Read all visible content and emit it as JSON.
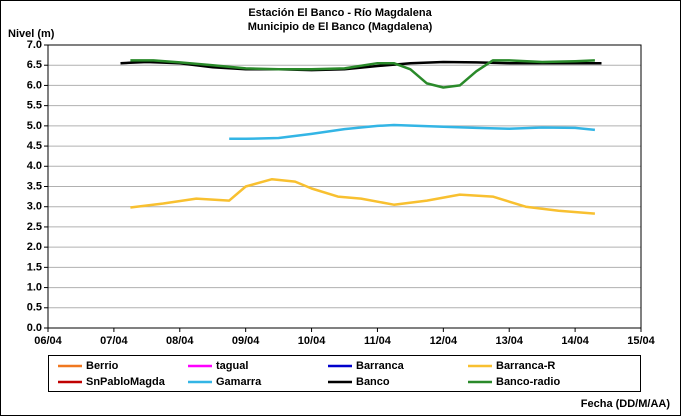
{
  "chart_data": {
    "type": "line",
    "title": "Estación El Banco - Río Magdalena",
    "subtitle": "Municipio de El Banco (Magdalena)",
    "y_label": "Nivel (m)",
    "x_label": "Fecha (DD/M/AA)",
    "xlim": [
      6,
      15
    ],
    "xticks": [
      {
        "value": 6,
        "label": "06/04"
      },
      {
        "value": 7,
        "label": "07/04"
      },
      {
        "value": 8,
        "label": "08/04"
      },
      {
        "value": 9,
        "label": "09/04"
      },
      {
        "value": 10,
        "label": "10/04"
      },
      {
        "value": 11,
        "label": "11/04"
      },
      {
        "value": 12,
        "label": "12/04"
      },
      {
        "value": 13,
        "label": "13/04"
      },
      {
        "value": 14,
        "label": "14/04"
      },
      {
        "value": 15,
        "label": "15/04"
      }
    ],
    "ylim": [
      0,
      7
    ],
    "yticks": [
      {
        "value": 0,
        "label": "0.0"
      },
      0.5,
      {
        "value": 1,
        "label": "1.0"
      },
      1.5,
      {
        "value": 2,
        "label": "2.0"
      },
      2.5,
      {
        "value": 3,
        "label": "3.0"
      },
      3.5,
      {
        "value": 4,
        "label": "4.0"
      },
      4.5,
      {
        "value": 5,
        "label": "5.0"
      },
      5.5,
      {
        "value": 6,
        "label": "6.0"
      },
      6.5,
      {
        "value": 7,
        "label": "7.0"
      }
    ],
    "grid": true,
    "legend": "bottom",
    "series": [
      {
        "name": "Berrio",
        "color": "#f07820",
        "x": [],
        "values": []
      },
      {
        "name": "tagual",
        "color": "#ff00ff",
        "x": [],
        "values": []
      },
      {
        "name": "Barranca",
        "color": "#0000cc",
        "x": [],
        "values": []
      },
      {
        "name": "Barranca-R",
        "color": "#f8c030",
        "x": [
          7.25,
          7.75,
          8.25,
          8.75,
          9.0,
          9.4,
          9.75,
          10.0,
          10.4,
          10.75,
          11.25,
          11.75,
          12.25,
          12.75,
          13.25,
          13.75,
          14.3
        ],
        "values": [
          2.98,
          3.08,
          3.2,
          3.15,
          3.5,
          3.68,
          3.62,
          3.45,
          3.25,
          3.2,
          3.05,
          3.15,
          3.3,
          3.25,
          3.0,
          2.9,
          2.83
        ]
      },
      {
        "name": "SnPabloMagda",
        "color": "#c00000",
        "x": [],
        "values": []
      },
      {
        "name": "Gamarra",
        "color": "#33b5e5",
        "x": [
          8.75,
          9.0,
          9.5,
          10.0,
          10.5,
          11.0,
          11.25,
          12.0,
          12.5,
          13.0,
          13.5,
          14.0,
          14.3
        ],
        "values": [
          4.68,
          4.68,
          4.7,
          4.8,
          4.92,
          5.0,
          5.02,
          4.98,
          4.95,
          4.93,
          4.96,
          4.95,
          4.9
        ]
      },
      {
        "name": "Banco",
        "color": "#000000",
        "x": [
          7.1,
          7.5,
          8.0,
          8.5,
          9.0,
          9.5,
          10.0,
          10.5,
          11.0,
          11.5,
          12.0,
          12.5,
          13.0,
          13.5,
          14.0,
          14.4
        ],
        "values": [
          6.55,
          6.58,
          6.55,
          6.45,
          6.4,
          6.4,
          6.38,
          6.4,
          6.48,
          6.55,
          6.58,
          6.57,
          6.55,
          6.55,
          6.55,
          6.55
        ]
      },
      {
        "name": "Banco-radio",
        "color": "#2a8a2a",
        "x": [
          7.25,
          7.6,
          8.0,
          8.5,
          9.0,
          9.5,
          10.0,
          10.5,
          11.0,
          11.25,
          11.5,
          11.75,
          12.0,
          12.25,
          12.5,
          12.75,
          13.0,
          13.5,
          14.0,
          14.3
        ],
        "values": [
          6.62,
          6.62,
          6.57,
          6.5,
          6.42,
          6.4,
          6.4,
          6.42,
          6.55,
          6.55,
          6.4,
          6.05,
          5.95,
          6.0,
          6.35,
          6.62,
          6.62,
          6.58,
          6.6,
          6.62
        ]
      }
    ]
  }
}
